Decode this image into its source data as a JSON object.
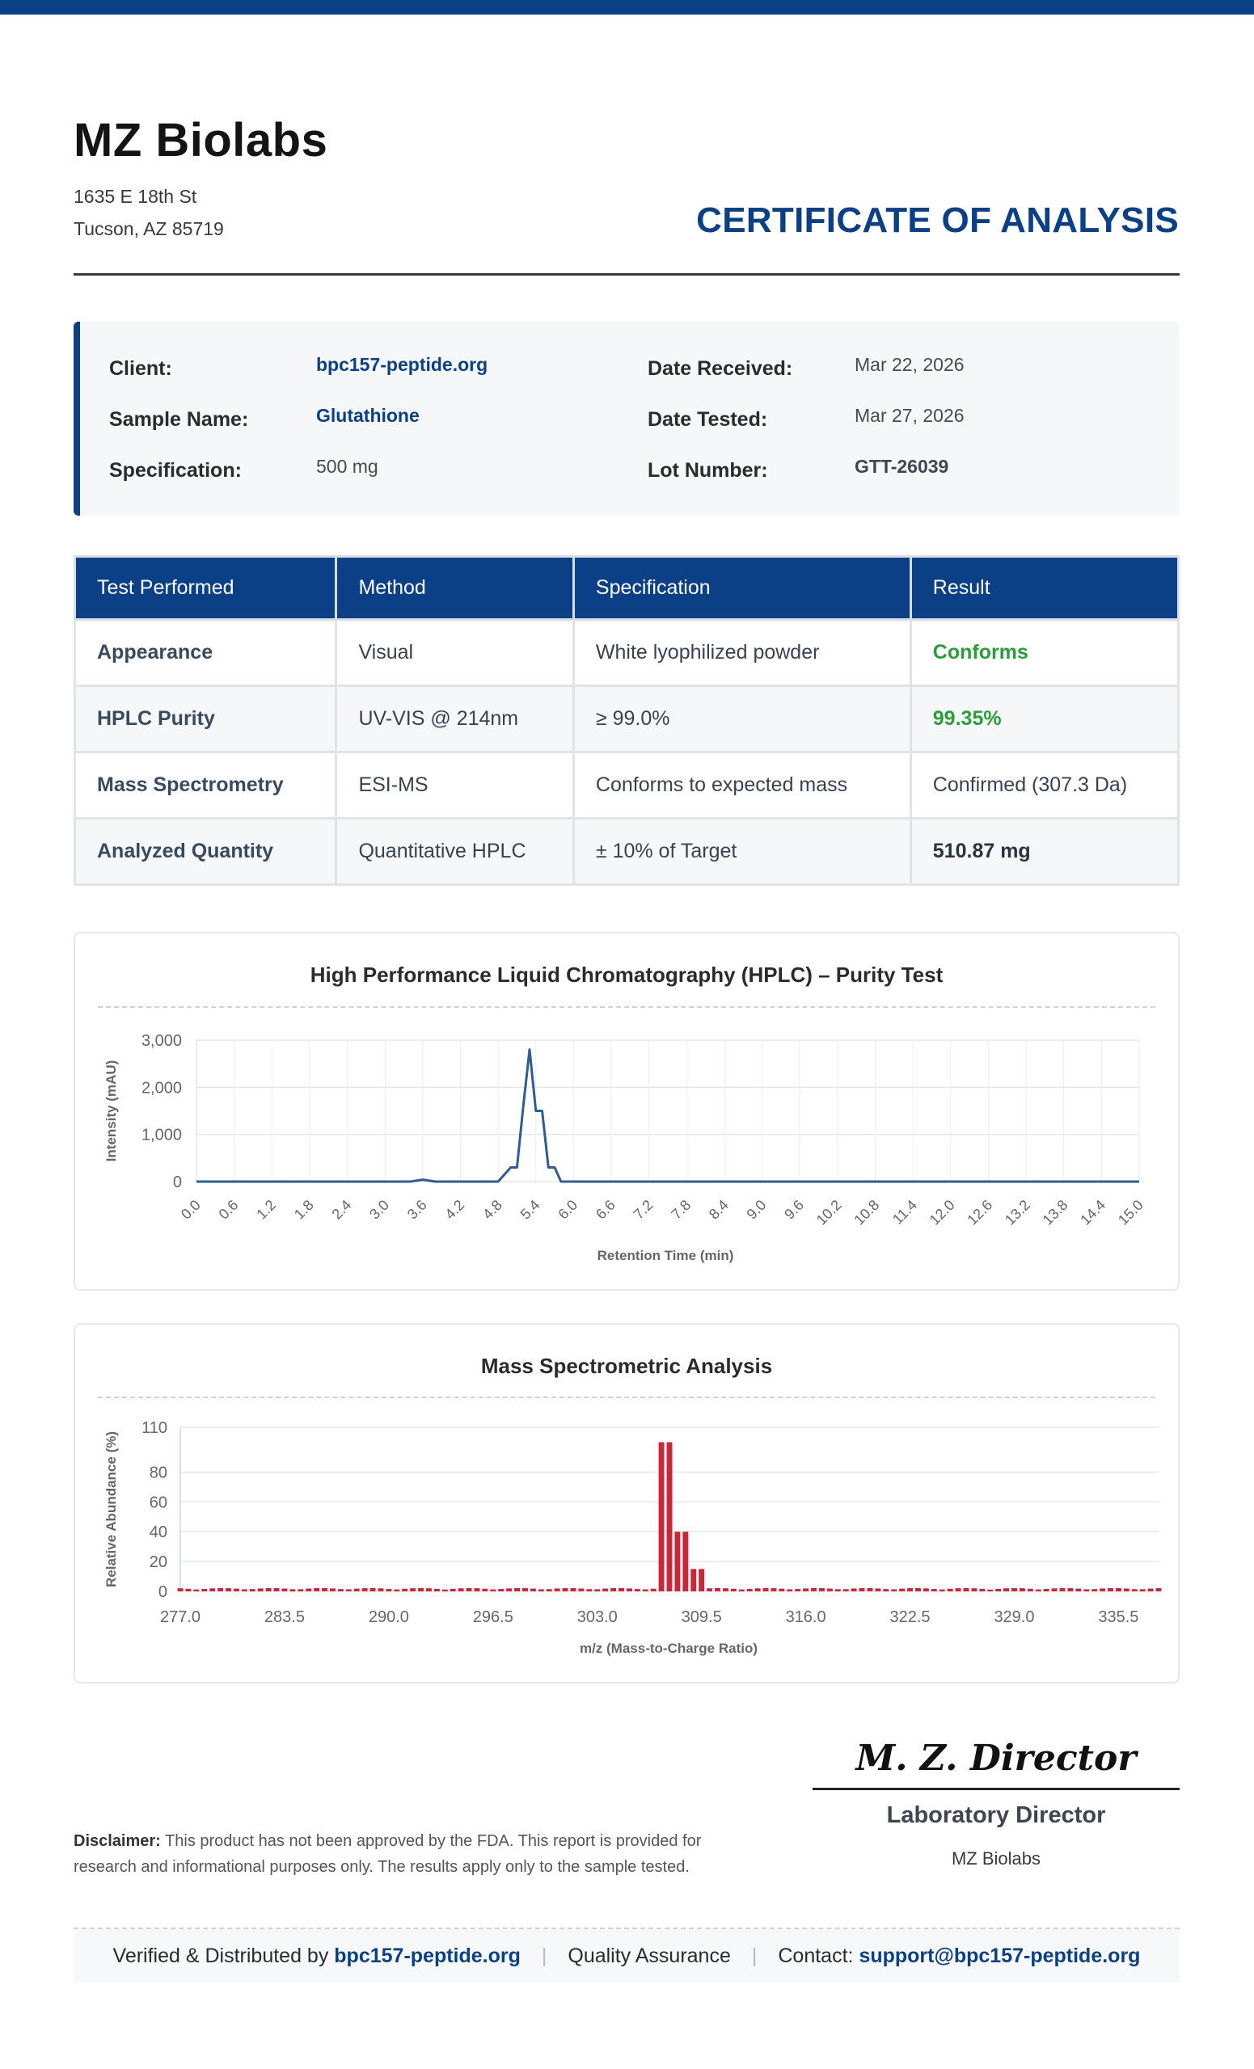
{
  "header": {
    "company": "MZ Biolabs",
    "address_line1": "1635 E 18th St",
    "address_line2": "Tucson, AZ 85719",
    "document_title": "CERTIFICATE OF ANALYSIS"
  },
  "info": {
    "client_label": "Client:",
    "client_value": "bpc157-peptide.org",
    "sample_label": "Sample Name:",
    "sample_value": "Glutathione",
    "spec_label": "Specification:",
    "spec_value": "500 mg",
    "received_label": "Date Received:",
    "received_value": "Mar 22, 2026",
    "tested_label": "Date Tested:",
    "tested_value": "Mar 27, 2026",
    "lot_label": "Lot Number:",
    "lot_value": "GTT-26039"
  },
  "results_table": {
    "headers": [
      "Test Performed",
      "Method",
      "Specification",
      "Result"
    ],
    "rows": [
      [
        "Appearance",
        "Visual",
        "White lyophilized powder",
        "Conforms"
      ],
      [
        "HPLC Purity",
        "UV-VIS @ 214nm",
        "≥ 99.0%",
        "99.35%"
      ],
      [
        "Mass Spectrometry",
        "ESI-MS",
        "Conforms to expected mass",
        "Confirmed (307.3 Da)"
      ],
      [
        "Analyzed Quantity",
        "Quantitative HPLC",
        "± 10% of Target",
        "510.87 mg"
      ]
    ]
  },
  "chart_data": [
    {
      "type": "line",
      "title": "High Performance Liquid Chromatography (HPLC) – Purity Test",
      "xlabel": "Retention Time (min)",
      "ylabel": "Intensity (mAU)",
      "xlim": [
        0,
        15
      ],
      "ylim": [
        0,
        3000
      ],
      "yticks": [
        "0",
        "1,000",
        "2,000",
        "3,000"
      ],
      "xticks": [
        "0.0",
        "0.6",
        "1.2",
        "1.8",
        "2.4",
        "3.0",
        "3.6",
        "4.2",
        "4.8",
        "5.4",
        "6.0",
        "6.6",
        "7.2",
        "7.8",
        "8.4",
        "9.0",
        "9.6",
        "10.2",
        "10.8",
        "11.4",
        "12.0",
        "12.6",
        "13.2",
        "13.8",
        "14.4",
        "15.0"
      ],
      "color": "#2f5d93",
      "grid": true,
      "x": [
        0,
        3.4,
        3.6,
        3.8,
        4.0,
        4.8,
        5.0,
        5.1,
        5.2,
        5.3,
        5.4,
        5.5,
        5.6,
        5.7,
        5.8,
        6.0,
        15.0
      ],
      "y": [
        0,
        0,
        40,
        0,
        0,
        0,
        300,
        300,
        1600,
        2800,
        1500,
        1500,
        300,
        300,
        0,
        0,
        0
      ]
    },
    {
      "type": "bar",
      "title": "Mass Spectrometric Analysis",
      "xlabel": "m/z (Mass-to-Charge Ratio)",
      "ylabel": "Relative Abundance (%)",
      "xlim": [
        277.0,
        338.0
      ],
      "ylim": [
        0,
        110
      ],
      "yticks": [
        "0",
        "20",
        "40",
        "60",
        "80",
        "110"
      ],
      "xticks": [
        "277.0",
        "283.5",
        "290.0",
        "296.5",
        "303.0",
        "309.5",
        "316.0",
        "322.5",
        "329.0",
        "335.5"
      ],
      "color": "#c8283a",
      "grid": true,
      "noise_level": 2,
      "peaks": [
        {
          "x": 307.0,
          "y": 100
        },
        {
          "x": 307.5,
          "y": 100
        },
        {
          "x": 308.0,
          "y": 40
        },
        {
          "x": 308.5,
          "y": 40
        },
        {
          "x": 309.0,
          "y": 15
        },
        {
          "x": 309.5,
          "y": 15
        }
      ]
    }
  ],
  "signature": {
    "name": "M. Z. Director",
    "title": "Laboratory Director",
    "organization": "MZ Biolabs"
  },
  "disclaimer": {
    "label": "Disclaimer:",
    "text": "This product has not been approved by the FDA. This report is provided for research and informational purposes only. The results apply only to the sample tested."
  },
  "footer": {
    "verified_text": "Verified & Distributed by",
    "verified_link": "bpc157-peptide.org",
    "quality": "Quality Assurance",
    "contact_label": "Contact:",
    "contact_email": "support@bpc157-peptide.org"
  }
}
